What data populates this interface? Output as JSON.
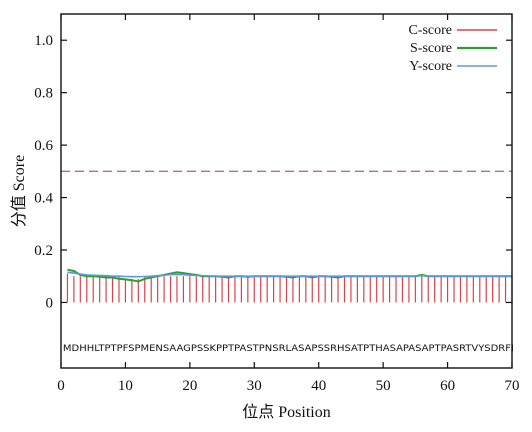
{
  "chart_data": {
    "type": "line",
    "xlabel": "位点 Position",
    "ylabel": "分值 Score",
    "xlim": [
      0,
      70
    ],
    "ylim": [
      -0.25,
      1.1
    ],
    "x_ticks": [
      0,
      10,
      20,
      30,
      40,
      50,
      60,
      70
    ],
    "y_ticks": [
      0,
      0.2,
      0.4,
      0.6,
      0.8,
      1.0
    ],
    "grid": false,
    "legend_position": "top-right",
    "threshold": {
      "y": 0.5,
      "color": "#b06ab3"
    },
    "sequence": "MDHHLTPTPFSPMENSAAGPSSKPPTPASTPNSRLASAPSSRHSATPTHASAPASAPTPASRTVYSDRFI",
    "series": [
      {
        "name": "C-score",
        "color": "#e0404a",
        "style": "impulse",
        "x": [
          1,
          2,
          3,
          4,
          5,
          6,
          7,
          8,
          9,
          10,
          11,
          12,
          13,
          14,
          15,
          16,
          17,
          18,
          19,
          20,
          21,
          22,
          23,
          24,
          25,
          26,
          27,
          28,
          29,
          30,
          31,
          32,
          33,
          34,
          35,
          36,
          37,
          38,
          39,
          40,
          41,
          42,
          43,
          44,
          45,
          46,
          47,
          48,
          49,
          50,
          51,
          52,
          53,
          54,
          55,
          56,
          57,
          58,
          59,
          60,
          61,
          62,
          63,
          64,
          65,
          66,
          67,
          68,
          69,
          70
        ],
        "values": [
          0.11,
          0.1,
          0.1,
          0.1,
          0.1,
          0.1,
          0.1,
          0.1,
          0.1,
          0.09,
          0.09,
          0.09,
          0.1,
          0.1,
          0.1,
          0.1,
          0.1,
          0.1,
          0.1,
          0.1,
          0.1,
          0.1,
          0.1,
          0.1,
          0.1,
          0.1,
          0.1,
          0.1,
          0.1,
          0.1,
          0.1,
          0.1,
          0.1,
          0.1,
          0.1,
          0.1,
          0.1,
          0.1,
          0.1,
          0.1,
          0.1,
          0.1,
          0.1,
          0.1,
          0.1,
          0.1,
          0.1,
          0.1,
          0.1,
          0.1,
          0.1,
          0.1,
          0.1,
          0.1,
          0.1,
          0.1,
          0.1,
          0.1,
          0.1,
          0.1,
          0.1,
          0.1,
          0.1,
          0.1,
          0.1,
          0.1,
          0.1,
          0.1,
          0.1,
          0.1
        ]
      },
      {
        "name": "S-score",
        "color": "#2ca02c",
        "style": "line",
        "x": [
          1,
          2,
          3,
          4,
          5,
          6,
          7,
          8,
          9,
          10,
          11,
          12,
          13,
          14,
          15,
          16,
          17,
          18,
          19,
          20,
          21,
          22,
          23,
          24,
          25,
          26,
          27,
          28,
          29,
          30,
          31,
          32,
          33,
          34,
          35,
          36,
          37,
          38,
          39,
          40,
          41,
          42,
          43,
          44,
          45,
          46,
          47,
          48,
          49,
          50,
          51,
          52,
          53,
          54,
          55,
          56,
          57,
          58,
          59,
          60,
          61,
          62,
          63,
          64,
          65,
          66,
          67,
          68,
          69,
          70
        ],
        "values": [
          0.125,
          0.12,
          0.105,
          0.1,
          0.1,
          0.098,
          0.095,
          0.095,
          0.09,
          0.088,
          0.085,
          0.08,
          0.09,
          0.095,
          0.1,
          0.105,
          0.11,
          0.115,
          0.112,
          0.108,
          0.105,
          0.1,
          0.1,
          0.1,
          0.098,
          0.095,
          0.1,
          0.1,
          0.098,
          0.1,
          0.1,
          0.1,
          0.1,
          0.1,
          0.098,
          0.095,
          0.1,
          0.1,
          0.095,
          0.1,
          0.1,
          0.098,
          0.095,
          0.1,
          0.1,
          0.1,
          0.1,
          0.1,
          0.1,
          0.1,
          0.1,
          0.1,
          0.1,
          0.1,
          0.1,
          0.105,
          0.1,
          0.1,
          0.1,
          0.1,
          0.1,
          0.1,
          0.1,
          0.1,
          0.1,
          0.1,
          0.1,
          0.1,
          0.1,
          0.1
        ]
      },
      {
        "name": "Y-score",
        "color": "#5b9bd5",
        "style": "line",
        "x": [
          1,
          2,
          3,
          4,
          5,
          6,
          7,
          8,
          9,
          10,
          11,
          12,
          13,
          14,
          15,
          16,
          17,
          18,
          19,
          20,
          21,
          22,
          23,
          24,
          25,
          26,
          27,
          28,
          29,
          30,
          31,
          32,
          33,
          34,
          35,
          36,
          37,
          38,
          39,
          40,
          41,
          42,
          43,
          44,
          45,
          46,
          47,
          48,
          49,
          50,
          51,
          52,
          53,
          54,
          55,
          56,
          57,
          58,
          59,
          60,
          61,
          62,
          63,
          64,
          65,
          66,
          67,
          68,
          69,
          70
        ],
        "values": [
          0.115,
          0.112,
          0.108,
          0.105,
          0.104,
          0.103,
          0.102,
          0.1,
          0.1,
          0.099,
          0.098,
          0.098,
          0.099,
          0.1,
          0.102,
          0.104,
          0.106,
          0.107,
          0.106,
          0.104,
          0.103,
          0.102,
          0.101,
          0.1,
          0.1,
          0.1,
          0.1,
          0.1,
          0.1,
          0.1,
          0.1,
          0.1,
          0.1,
          0.1,
          0.1,
          0.1,
          0.1,
          0.1,
          0.1,
          0.1,
          0.1,
          0.1,
          0.1,
          0.1,
          0.1,
          0.1,
          0.1,
          0.1,
          0.1,
          0.1,
          0.1,
          0.1,
          0.1,
          0.1,
          0.1,
          0.102,
          0.1,
          0.1,
          0.1,
          0.1,
          0.1,
          0.1,
          0.1,
          0.1,
          0.1,
          0.1,
          0.1,
          0.1,
          0.1,
          0.1
        ]
      }
    ]
  }
}
